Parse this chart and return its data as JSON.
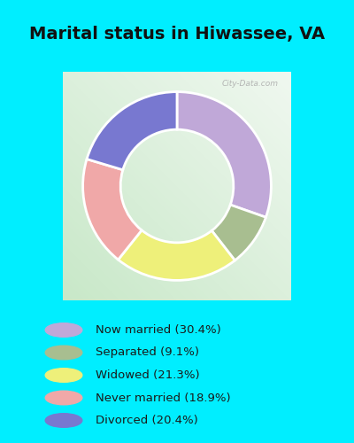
{
  "title": "Marital status in Hiwassee, VA",
  "categories": [
    "Now married",
    "Separated",
    "Widowed",
    "Never married",
    "Divorced"
  ],
  "values": [
    30.4,
    9.1,
    21.3,
    18.9,
    20.4
  ],
  "colors": [
    "#c0a8d8",
    "#a8be90",
    "#eef07a",
    "#f0a8a8",
    "#7878d0"
  ],
  "legend_labels": [
    "Now married (30.4%)",
    "Separated (9.1%)",
    "Widowed (21.3%)",
    "Never married (18.9%)",
    "Divorced (20.4%)"
  ],
  "legend_colors": [
    "#c0a8d8",
    "#a8be90",
    "#eef07a",
    "#f0a8a8",
    "#7878d0"
  ],
  "bg_outer": "#00eeff",
  "bg_chart_color1": "#c8e8c8",
  "bg_chart_color2": "#f0f8f0",
  "title_fontsize": 14,
  "watermark": "City-Data.com",
  "donut_width": 0.38,
  "startangle": 90
}
